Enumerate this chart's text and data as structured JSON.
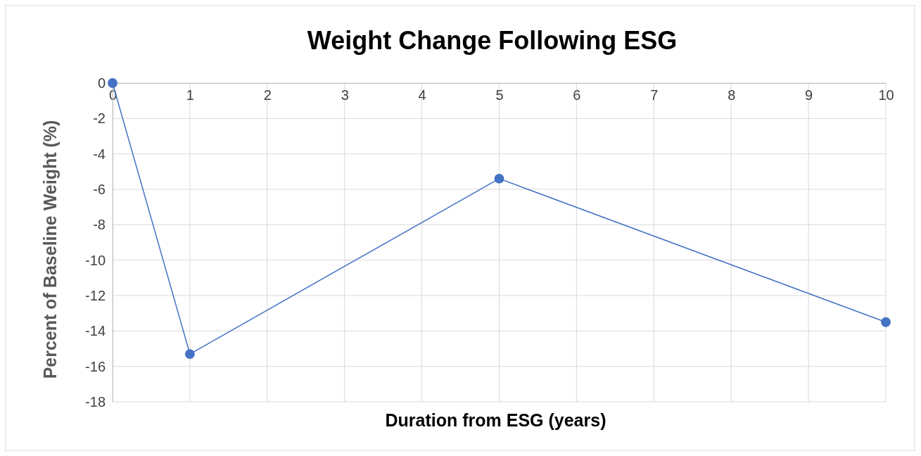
{
  "chart_data": {
    "type": "line",
    "title": "Weight Change Following ESG",
    "xlabel": "Duration from ESG (years)",
    "ylabel": "Percent of Baseline Weight (%)",
    "x": [
      0,
      1,
      5,
      10
    ],
    "series": [
      {
        "color": "#4472c4",
        "values": [
          0,
          -15.3,
          -5.4,
          -13.5
        ]
      }
    ],
    "xlim": [
      0,
      10
    ],
    "xticks": [
      0,
      1,
      2,
      3,
      4,
      5,
      6,
      7,
      8,
      9,
      10
    ],
    "ylim": [
      -18,
      0
    ],
    "yticks": [
      0,
      -2,
      -4,
      -6,
      -8,
      -10,
      -12,
      -14,
      -16,
      -18
    ],
    "grid": true,
    "marker": "circle",
    "line_style": "solid"
  }
}
